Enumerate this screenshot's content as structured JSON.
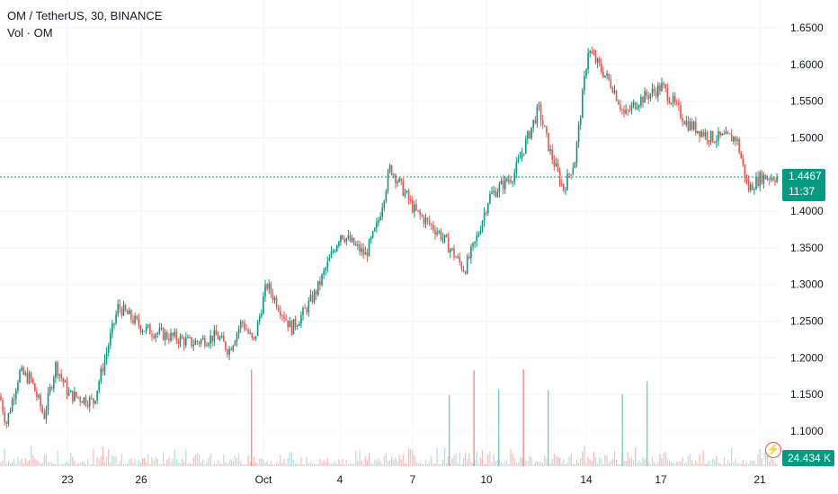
{
  "legend": {
    "symbol_line": "OM / TetherUS, 30, BINANCE",
    "volume_line": "Vol · OM"
  },
  "price_badge": {
    "price": "1.4467",
    "countdown": "11:37"
  },
  "volume_badge": {
    "value": "24.434 K"
  },
  "colors": {
    "up": "#089981",
    "down": "#ef5350",
    "grid": "#f0f3fa",
    "last_price_line": "#089981"
  },
  "chart_data": {
    "type": "candlestick",
    "y_axis": {
      "ticks": [
        "1.6500",
        "1.6000",
        "1.5500",
        "1.5000",
        "1.4500",
        "1.4000",
        "1.3500",
        "1.3000",
        "1.2500",
        "1.2000",
        "1.1500",
        "1.1000"
      ],
      "range": [
        1.08,
        1.66
      ],
      "side": "right"
    },
    "x_axis": {
      "ticks": [
        "23",
        "26",
        "Oct",
        "4",
        "7",
        "10",
        "14",
        "17",
        "21"
      ]
    },
    "last_price": 1.4467,
    "price_path": [
      {
        "x": "21 Sep",
        "y": 1.18
      },
      {
        "x": "21 Sep",
        "y": 1.11
      },
      {
        "x": "22 Sep",
        "y": 1.18
      },
      {
        "x": "22 Sep",
        "y": 1.17
      },
      {
        "x": "23 Sep",
        "y": 1.12
      },
      {
        "x": "23 Sep",
        "y": 1.19
      },
      {
        "x": "24 Sep",
        "y": 1.15
      },
      {
        "x": "25 Sep",
        "y": 1.14
      },
      {
        "x": "25 Sep",
        "y": 1.2
      },
      {
        "x": "26 Sep",
        "y": 1.27
      },
      {
        "x": "27 Sep",
        "y": 1.24
      },
      {
        "x": "28 Sep",
        "y": 1.23
      },
      {
        "x": "29 Sep",
        "y": 1.22
      },
      {
        "x": "30 Sep",
        "y": 1.23
      },
      {
        "x": "30 Sep",
        "y": 1.21
      },
      {
        "x": "1 Oct",
        "y": 1.25
      },
      {
        "x": "1 Oct",
        "y": 1.22
      },
      {
        "x": "2 Oct",
        "y": 1.3
      },
      {
        "x": "3 Oct",
        "y": 1.24
      },
      {
        "x": "3 Oct",
        "y": 1.26
      },
      {
        "x": "4 Oct",
        "y": 1.29
      },
      {
        "x": "5 Oct",
        "y": 1.37
      },
      {
        "x": "6 Oct",
        "y": 1.34
      },
      {
        "x": "6 Oct",
        "y": 1.38
      },
      {
        "x": "7 Oct",
        "y": 1.46
      },
      {
        "x": "8 Oct",
        "y": 1.4
      },
      {
        "x": "9 Oct",
        "y": 1.37
      },
      {
        "x": "10 Oct",
        "y": 1.32
      },
      {
        "x": "10 Oct",
        "y": 1.36
      },
      {
        "x": "11 Oct",
        "y": 1.42
      },
      {
        "x": "12 Oct",
        "y": 1.45
      },
      {
        "x": "13 Oct",
        "y": 1.54
      },
      {
        "x": "13 Oct",
        "y": 1.48
      },
      {
        "x": "14 Oct",
        "y": 1.43
      },
      {
        "x": "14 Oct",
        "y": 1.47
      },
      {
        "x": "15 Oct",
        "y": 1.62
      },
      {
        "x": "16 Oct",
        "y": 1.57
      },
      {
        "x": "16 Oct",
        "y": 1.53
      },
      {
        "x": "17 Oct",
        "y": 1.55
      },
      {
        "x": "18 Oct",
        "y": 1.57
      },
      {
        "x": "19 Oct",
        "y": 1.52
      },
      {
        "x": "20 Oct",
        "y": 1.5
      },
      {
        "x": "21 Oct",
        "y": 1.5
      },
      {
        "x": "21 Oct",
        "y": 1.43
      },
      {
        "x": "22 Oct",
        "y": 1.4467
      }
    ],
    "volume_spikes": [
      {
        "x": "1 Oct",
        "level": 0.98
      },
      {
        "x": "10 Oct",
        "level": 0.97
      },
      {
        "x": "12 Oct",
        "level": 0.98
      },
      {
        "x": "11 Oct",
        "level": 0.78
      },
      {
        "x": "13 Oct",
        "level": 0.77
      },
      {
        "x": "17 Oct",
        "level": 0.86
      },
      {
        "x": "9 Oct",
        "level": 0.72
      },
      {
        "x": "16 Oct",
        "level": 0.73
      }
    ]
  }
}
